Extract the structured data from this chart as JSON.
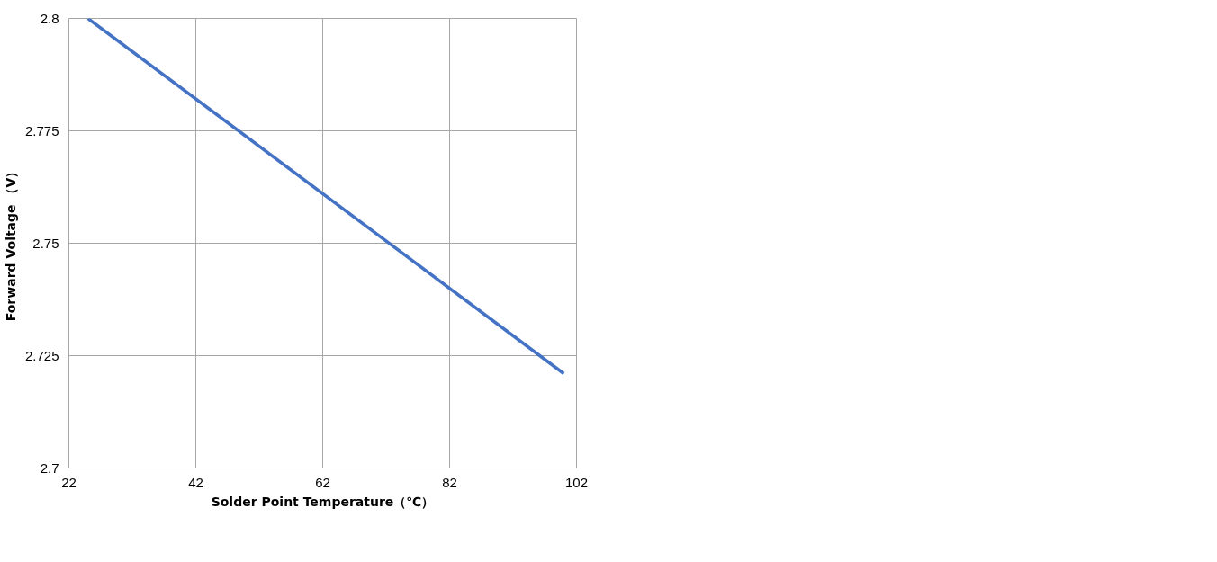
{
  "chart_data": {
    "type": "line",
    "xlabel": "Solder Point Temperature（℃）",
    "ylabel": "Forward Voltage （V）",
    "x": [
      25,
      100
    ],
    "series": [
      {
        "color": "#4472c4",
        "values": [
          2.8,
          2.721
        ]
      }
    ],
    "xlim": [
      22,
      102
    ],
    "xticks": [
      22,
      42,
      62,
      82,
      102
    ],
    "ylim": [
      2.7,
      2.8
    ],
    "yticks": [
      2.7,
      2.725,
      2.75,
      2.775,
      2.8
    ],
    "grid": true,
    "marker": "none",
    "line_style": "solid"
  }
}
